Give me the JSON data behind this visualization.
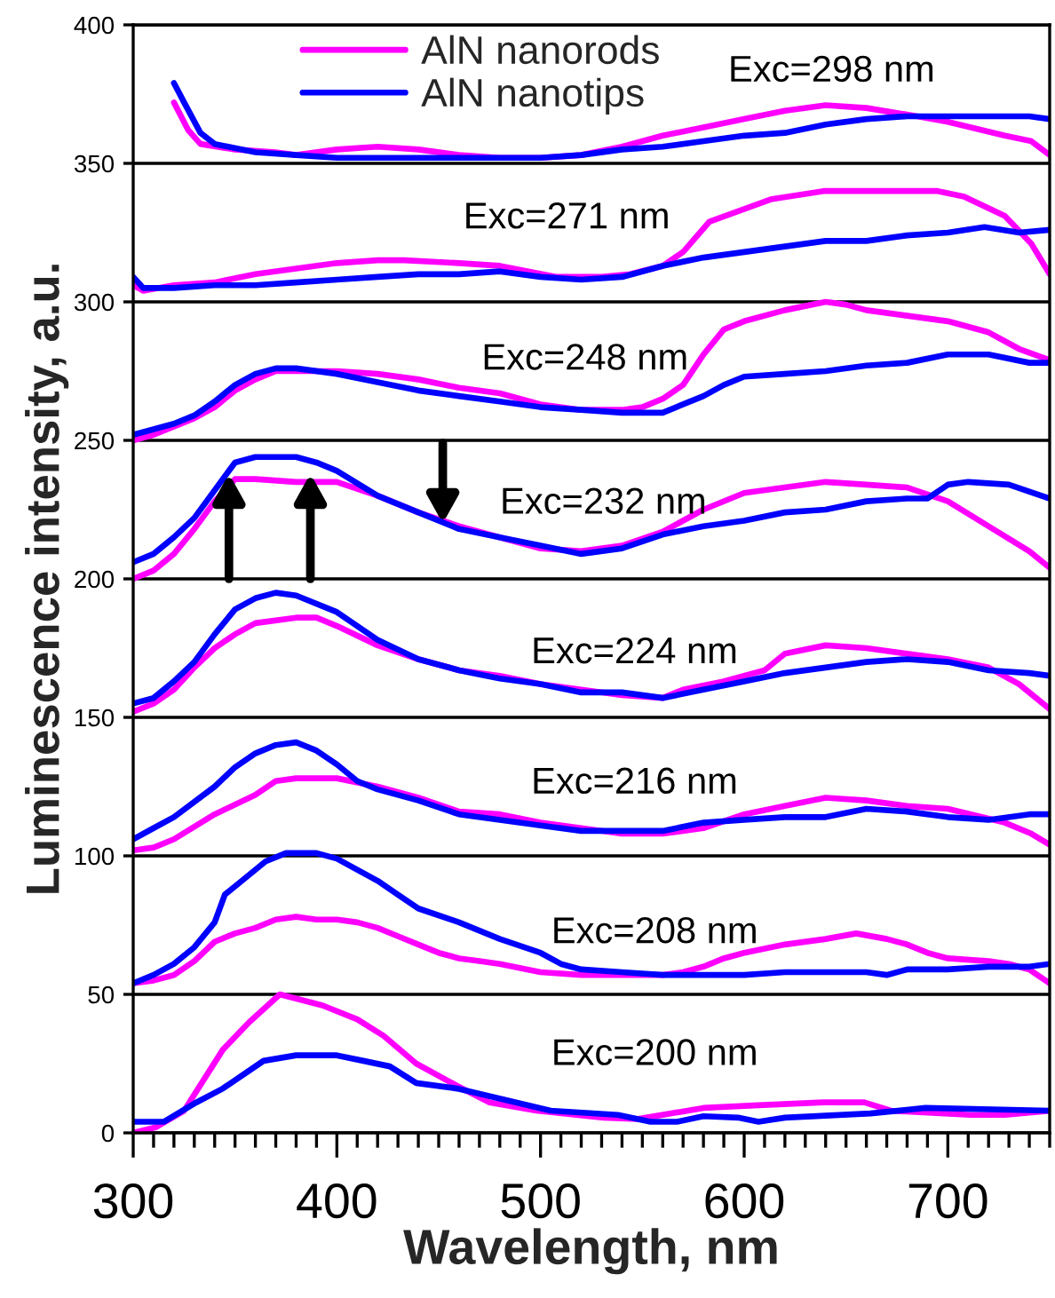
{
  "chart_data": {
    "type": "line",
    "xlabel": "Wavelength, nm",
    "ylabel": "Luminescence intensity, a.u.",
    "xlim": [
      300,
      750
    ],
    "ylim": [
      0,
      400
    ],
    "xticks": [
      300,
      {
        "value": 310,
        "label": null
      },
      {
        "value": 320,
        "label": null
      },
      {
        "value": 330,
        "label": null
      },
      {
        "value": 340,
        "label": null
      },
      {
        "value": 350,
        "label": null
      },
      {
        "value": 360,
        "label": null
      },
      {
        "value": 370,
        "label": null
      },
      {
        "value": 380,
        "label": null
      },
      {
        "value": 390,
        "label": null
      },
      400,
      {
        "value": 410,
        "label": null
      },
      {
        "value": 420,
        "label": null
      },
      {
        "value": 430,
        "label": null
      },
      {
        "value": 440,
        "label": null
      },
      {
        "value": 450,
        "label": null
      },
      {
        "value": 460,
        "label": null
      },
      {
        "value": 470,
        "label": null
      },
      {
        "value": 480,
        "label": null
      },
      {
        "value": 490,
        "label": null
      },
      500,
      {
        "value": 510,
        "label": null
      },
      {
        "value": 520,
        "label": null
      },
      {
        "value": 530,
        "label": null
      },
      {
        "value": 540,
        "label": null
      },
      {
        "value": 550,
        "label": null
      },
      {
        "value": 560,
        "label": null
      },
      {
        "value": 570,
        "label": null
      },
      {
        "value": 580,
        "label": null
      },
      {
        "value": 590,
        "label": null
      },
      600,
      {
        "value": 610,
        "label": null
      },
      {
        "value": 620,
        "label": null
      },
      {
        "value": 630,
        "label": null
      },
      {
        "value": 640,
        "label": null
      },
      {
        "value": 650,
        "label": null
      },
      {
        "value": 660,
        "label": null
      },
      {
        "value": 670,
        "label": null
      },
      {
        "value": 680,
        "label": null
      },
      {
        "value": 690,
        "label": null
      },
      700,
      {
        "value": 710,
        "label": null
      },
      {
        "value": 720,
        "label": null
      },
      {
        "value": 730,
        "label": null
      },
      {
        "value": 740,
        "label": null
      },
      {
        "value": 750,
        "label": null
      }
    ],
    "yticks": [
      0,
      50,
      100,
      150,
      200,
      250,
      300,
      350,
      400
    ],
    "grid": "y",
    "legend": "top",
    "annotations": [
      "Exc=298 nm",
      "Exc=271 nm",
      "Exc=248 nm",
      "Exc=232 nm",
      "Exc=224 nm",
      "Exc=216 nm",
      "Exc=208 nm",
      "Exc=200 nm"
    ],
    "series": [
      {
        "name": "AlN nanorods",
        "color": "#ff00ff",
        "x": [
          320,
          327,
          333,
          350,
          370,
          380,
          400,
          420,
          440,
          460,
          480,
          500,
          520,
          540,
          560,
          580,
          600,
          620,
          640,
          660,
          685,
          700,
          728,
          741,
          750
        ],
        "values": [
          372,
          362,
          357,
          355,
          354,
          353,
          355,
          356,
          355,
          353,
          352,
          352,
          353,
          356,
          360,
          363,
          366,
          369,
          371,
          370,
          367,
          365,
          360,
          358,
          353
        ]
      },
      {
        "name": "AlN nanotips",
        "color": "#0000ff",
        "x": [
          320,
          325,
          333,
          340,
          360,
          380,
          400,
          450,
          500,
          520,
          540,
          560,
          580,
          600,
          620,
          640,
          660,
          680,
          700,
          720,
          740,
          750
        ],
        "values": [
          379,
          372,
          361,
          357,
          354,
          353,
          352,
          352,
          352,
          353,
          355,
          356,
          358,
          360,
          361,
          364,
          366,
          367,
          367,
          367,
          367,
          366
        ]
      },
      {
        "color": "#ff00ff",
        "x": [
          300,
          305,
          320,
          340,
          360,
          380,
          400,
          420,
          433,
          460,
          480,
          508,
          530,
          544,
          560,
          570,
          583,
          613,
          639,
          660,
          680,
          695,
          708,
          728,
          741,
          750
        ],
        "values": [
          306,
          304,
          306,
          307,
          310,
          312,
          314,
          315,
          315,
          314,
          313,
          309,
          309,
          310,
          313,
          318,
          329,
          337,
          340,
          340,
          340,
          340,
          338,
          331,
          321,
          310
        ]
      },
      {
        "color": "#0000ff",
        "x": [
          300,
          305,
          320,
          340,
          360,
          380,
          400,
          420,
          440,
          460,
          480,
          500,
          520,
          540,
          560,
          580,
          600,
          620,
          640,
          660,
          680,
          700,
          718,
          735,
          750
        ],
        "values": [
          309,
          305,
          305,
          306,
          306,
          307,
          308,
          309,
          310,
          310,
          311,
          309,
          308,
          309,
          313,
          316,
          318,
          320,
          322,
          322,
          324,
          325,
          327,
          325,
          326
        ]
      },
      {
        "color": "#ff00ff",
        "x": [
          300,
          310,
          320,
          330,
          340,
          350,
          360,
          370,
          390,
          400,
          420,
          440,
          460,
          480,
          500,
          520,
          540,
          550,
          560,
          570,
          580,
          590,
          600,
          620,
          640,
          650,
          660,
          680,
          700,
          720,
          735,
          750
        ],
        "values": [
          250,
          252,
          255,
          258,
          262,
          268,
          272,
          275,
          275,
          275,
          274,
          272,
          269,
          267,
          263,
          261,
          261,
          262,
          265,
          270,
          281,
          290,
          293,
          297,
          300,
          299,
          297,
          295,
          293,
          289,
          283,
          279
        ]
      },
      {
        "color": "#0000ff",
        "x": [
          300,
          310,
          320,
          330,
          340,
          350,
          360,
          370,
          380,
          400,
          420,
          440,
          460,
          480,
          500,
          520,
          540,
          560,
          570,
          580,
          590,
          600,
          620,
          640,
          660,
          680,
          700,
          720,
          740,
          750
        ],
        "values": [
          252,
          254,
          256,
          259,
          264,
          270,
          274,
          276,
          276,
          274,
          271,
          268,
          266,
          264,
          262,
          261,
          260,
          260,
          263,
          266,
          270,
          273,
          274,
          275,
          277,
          278,
          281,
          281,
          278,
          278
        ]
      },
      {
        "color": "#ff00ff",
        "x": [
          300,
          310,
          320,
          330,
          340,
          350,
          360,
          380,
          390,
          400,
          420,
          440,
          460,
          480,
          500,
          520,
          540,
          560,
          580,
          600,
          620,
          640,
          660,
          680,
          700,
          720,
          740,
          750
        ],
        "values": [
          200,
          203,
          209,
          218,
          228,
          236,
          236,
          235,
          235,
          235,
          230,
          224,
          219,
          215,
          211,
          210,
          212,
          217,
          225,
          231,
          233,
          235,
          234,
          233,
          228,
          219,
          210,
          204
        ]
      },
      {
        "color": "#0000ff",
        "x": [
          300,
          310,
          320,
          330,
          340,
          350,
          360,
          380,
          390,
          400,
          420,
          440,
          460,
          480,
          500,
          520,
          540,
          560,
          580,
          600,
          620,
          640,
          660,
          680,
          690,
          700,
          710,
          730,
          750
        ],
        "values": [
          206,
          209,
          215,
          222,
          232,
          242,
          244,
          244,
          242,
          239,
          230,
          224,
          218,
          215,
          212,
          209,
          211,
          216,
          219,
          221,
          224,
          225,
          228,
          229,
          229,
          234,
          235,
          234,
          229
        ]
      },
      {
        "color": "#ff00ff",
        "x": [
          300,
          310,
          320,
          330,
          340,
          350,
          360,
          380,
          390,
          400,
          420,
          440,
          460,
          480,
          500,
          520,
          540,
          560,
          570,
          590,
          610,
          620,
          640,
          660,
          680,
          700,
          720,
          735,
          750
        ],
        "values": [
          152,
          155,
          160,
          168,
          175,
          180,
          184,
          186,
          186,
          183,
          176,
          171,
          167,
          165,
          162,
          160,
          158,
          157,
          160,
          163,
          167,
          173,
          176,
          175,
          173,
          171,
          168,
          162,
          153
        ]
      },
      {
        "color": "#0000ff",
        "x": [
          300,
          310,
          320,
          330,
          340,
          350,
          360,
          370,
          380,
          400,
          420,
          440,
          460,
          480,
          500,
          520,
          540,
          560,
          580,
          600,
          620,
          640,
          660,
          680,
          700,
          720,
          740,
          750
        ],
        "values": [
          155,
          157,
          163,
          170,
          180,
          189,
          193,
          195,
          194,
          188,
          178,
          171,
          167,
          164,
          162,
          159,
          159,
          157,
          160,
          163,
          166,
          168,
          170,
          171,
          170,
          167,
          166,
          165
        ]
      },
      {
        "color": "#ff00ff",
        "x": [
          300,
          310,
          320,
          340,
          360,
          370,
          380,
          400,
          420,
          440,
          460,
          480,
          500,
          520,
          540,
          560,
          580,
          600,
          620,
          640,
          660,
          680,
          700,
          728,
          741,
          750
        ],
        "values": [
          102,
          103,
          106,
          115,
          122,
          127,
          128,
          128,
          125,
          121,
          116,
          115,
          112,
          110,
          108,
          108,
          110,
          115,
          118,
          121,
          120,
          118,
          117,
          112,
          108,
          104
        ]
      },
      {
        "color": "#0000ff",
        "x": [
          300,
          310,
          320,
          340,
          350,
          360,
          370,
          380,
          390,
          400,
          410,
          420,
          440,
          460,
          480,
          500,
          520,
          540,
          560,
          580,
          600,
          620,
          640,
          660,
          680,
          700,
          720,
          740,
          750
        ],
        "values": [
          106,
          110,
          114,
          125,
          132,
          137,
          140,
          141,
          138,
          133,
          127,
          124,
          120,
          115,
          113,
          111,
          109,
          109,
          109,
          112,
          113,
          114,
          114,
          117,
          116,
          114,
          113,
          115,
          115
        ]
      },
      {
        "color": "#ff00ff",
        "x": [
          300,
          310,
          320,
          330,
          340,
          350,
          360,
          370,
          380,
          390,
          400,
          410,
          420,
          430,
          440,
          450,
          460,
          470,
          480,
          500,
          520,
          540,
          560,
          570,
          580,
          590,
          600,
          620,
          640,
          655,
          670,
          680,
          690,
          700,
          720,
          730,
          740,
          750
        ],
        "values": [
          54,
          55,
          57,
          62,
          69,
          72,
          74,
          77,
          78,
          77,
          77,
          76,
          74,
          71,
          68,
          65,
          63,
          62,
          61,
          58,
          57,
          57,
          57,
          58,
          60,
          63,
          65,
          68,
          70,
          72,
          70,
          68,
          65,
          63,
          62,
          61,
          59,
          54
        ]
      },
      {
        "color": "#0000ff",
        "x": [
          300,
          310,
          320,
          330,
          340,
          345,
          355,
          365,
          375,
          390,
          400,
          410,
          420,
          430,
          440,
          460,
          480,
          500,
          510,
          520,
          540,
          560,
          600,
          620,
          660,
          670,
          680,
          700,
          720,
          740,
          750
        ],
        "values": [
          54,
          57,
          61,
          67,
          76,
          86,
          92,
          98,
          101,
          101,
          99,
          95,
          91,
          86,
          81,
          76,
          70,
          65,
          61,
          59,
          58,
          57,
          57,
          58,
          58,
          57,
          59,
          59,
          60,
          60,
          61
        ]
      },
      {
        "color": "#ff00ff",
        "x": [
          300,
          311,
          325,
          344,
          357,
          372,
          393,
          410,
          423,
          439,
          459,
          475,
          498,
          531,
          548,
          580,
          607,
          639,
          659,
          672,
          711,
          728,
          750
        ],
        "values": [
          0,
          2,
          8,
          30,
          40,
          50,
          46,
          41,
          35,
          25,
          17,
          11,
          8,
          5.5,
          5,
          9,
          10,
          11,
          11,
          8,
          6.5,
          6.5,
          8
        ]
      },
      {
        "color": "#0000ff",
        "x": [
          300,
          315,
          331,
          344,
          364,
          380,
          400,
          413,
          426,
          439,
          459,
          482,
          505,
          538,
          554,
          567,
          580,
          597,
          607,
          620,
          662,
          689,
          750
        ],
        "values": [
          4,
          4,
          11,
          16,
          26,
          28,
          28,
          26,
          24,
          18,
          16,
          12,
          8,
          6.5,
          4,
          4,
          6,
          5.5,
          4,
          5.5,
          7,
          9,
          8
        ]
      }
    ]
  }
}
